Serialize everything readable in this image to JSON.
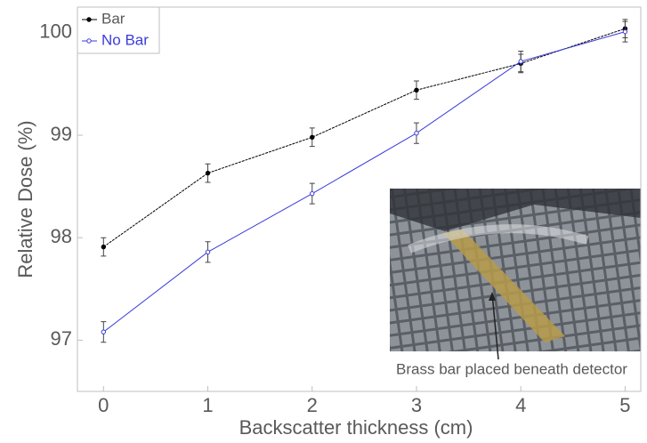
{
  "chart_data": {
    "type": "line",
    "x_label": "Backscatter thickness (cm)",
    "y_label": "Relative Dose (%)",
    "x": [
      0,
      1,
      2,
      3,
      4,
      5
    ],
    "series": [
      {
        "name": "Bar",
        "color": "#000000",
        "values": [
          97.91,
          98.63,
          98.98,
          99.44,
          99.7,
          100.04
        ],
        "errors": [
          0.09,
          0.09,
          0.09,
          0.09,
          0.09,
          0.09
        ]
      },
      {
        "name": "No Bar",
        "color": "#3b3bdc",
        "values": [
          97.08,
          97.86,
          98.43,
          99.02,
          99.72,
          100.01
        ],
        "errors": [
          0.1,
          0.1,
          0.1,
          0.1,
          0.1,
          0.1
        ]
      }
    ],
    "xlim": [
      -0.25,
      5.15
    ],
    "ylim": [
      96.5,
      100.25
    ],
    "xticks": [
      0,
      1,
      2,
      3,
      4,
      5
    ],
    "yticks": [
      97,
      98,
      99,
      100
    ],
    "legend": "upper left",
    "annotation": "Brass bar placed beneath detector"
  }
}
